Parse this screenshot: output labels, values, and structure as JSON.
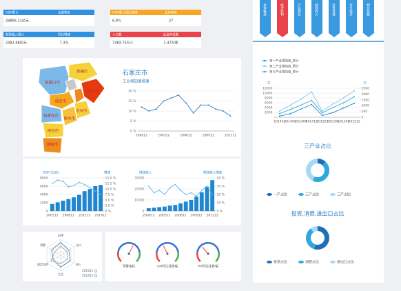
{
  "cards": [
    {
      "title": "GDP累计",
      "title2": "全国排名",
      "value": "29806.11亿元",
      "color": "#2f8fe0"
    },
    {
      "title": "GDP累计同比增速",
      "title2": "全省排名",
      "value": "6.8%",
      "value2": "27",
      "color": "#f5a623"
    },
    {
      "title": "财政收入累计",
      "title2": "同比增速",
      "value": "2382.68亿元",
      "value2": "7.3%",
      "color": "#2f8fe0"
    },
    {
      "title": "人口数",
      "title2": "企业单位数",
      "value": "7383.75万人",
      "value2": "1.47万家",
      "color": "#e8434b"
    }
  ],
  "tabs": {
    "labels": [
      "总体概述",
      "经济结构",
      "产业指标",
      "财政收入",
      "投资消费",
      "对外经济",
      "物价指数"
    ],
    "active": 1
  },
  "map": {
    "regions": [
      "张家口市",
      "承德市",
      "唐山市",
      "保定市",
      "沧州市",
      "石家庄市",
      "衡水市",
      "邢台市",
      "邯郸市"
    ]
  },
  "chart_data": [
    {
      "type": "line",
      "title": "石家庄市",
      "subtitle": "工业增加值增速",
      "color": "#2b7fc4",
      "categories": [
        "200012",
        null,
        null,
        "200312",
        null,
        null,
        "200612",
        null,
        null,
        "200912",
        null,
        null,
        "201212"
      ],
      "values": [
        12,
        10,
        11,
        15,
        16.5,
        18,
        14,
        9,
        13,
        13,
        11,
        10,
        7.5
      ],
      "ylim": [
        0,
        20
      ],
      "yticks": [
        {
          "value": 0,
          "label": "0 %"
        },
        {
          "value": 5,
          "label": "5 %"
        },
        {
          "value": 10,
          "label": "10 %"
        },
        {
          "value": 15,
          "label": "15 %"
        },
        {
          "value": 20,
          "label": "20 %"
        }
      ],
      "grid": true
    },
    {
      "type": "bar",
      "ylabel": "GDP (亿元)",
      "y2label": "增速",
      "categories": [
        "200512",
        null,
        null,
        "200812",
        null,
        null,
        "201112",
        null,
        null,
        "201412"
      ],
      "series": [
        {
          "type": "bar",
          "color": "#1f86d0",
          "values": [
            1700,
            2100,
            2500,
            2900,
            3300,
            3900,
            4800,
            5300,
            6000,
            6300
          ]
        },
        {
          "type": "line",
          "axis": "y2",
          "color": "#5bb4e8",
          "values": [
            12.5,
            14,
            13.5,
            11,
            11.5,
            13,
            12,
            10.5,
            9,
            7.5
          ]
        }
      ],
      "ylim": [
        0,
        8000
      ],
      "yticks": [
        0,
        2000,
        4000,
        6000,
        8000
      ],
      "y2lim": [
        0,
        15
      ],
      "y2ticks": [
        {
          "value": 0,
          "label": "0 %"
        },
        {
          "value": 2.5,
          "label": "2.5 %"
        },
        {
          "value": 5,
          "label": "5.0 %"
        },
        {
          "value": 7.5,
          "label": "7.5 %"
        },
        {
          "value": 10,
          "label": "10.0 %"
        },
        {
          "value": 12.5,
          "label": "12.5 %"
        },
        {
          "value": 15,
          "label": "15.0 %"
        }
      ],
      "grid": true
    },
    {
      "type": "bar",
      "ylabel": "财政收入",
      "y2label": "财政收入增速",
      "categories": [
        "200012",
        null,
        null,
        "200312",
        null,
        null,
        "200612",
        null,
        null,
        "200912",
        null,
        null,
        "201212"
      ],
      "series": [
        {
          "type": "bar",
          "color": "#1f86d0",
          "values": [
            2500,
            3000,
            3500,
            4000,
            5000,
            5500,
            7000,
            8500,
            10000,
            13000,
            17000,
            22000,
            28000
          ]
        },
        {
          "type": "line",
          "axis": "y2",
          "color": "#5bb4e8",
          "values": [
            30,
            22,
            25,
            20,
            28,
            32,
            25,
            20,
            22,
            18,
            25,
            30,
            20
          ]
        }
      ],
      "ylim": [
        0,
        30000
      ],
      "yticks": [
        0,
        10000,
        20000,
        30000
      ],
      "y2lim": [
        0,
        40
      ],
      "y2ticks": [
        {
          "value": 0,
          "label": "0 %"
        },
        {
          "value": 10,
          "label": "10 %"
        },
        {
          "value": 20,
          "label": "20 %"
        },
        {
          "value": 30,
          "label": "30 %"
        },
        {
          "value": 40,
          "label": "40 %"
        }
      ],
      "grid": true
    },
    {
      "type": "line",
      "ylabel": "亿",
      "y2label": "亿",
      "categories": [
        "201403",
        "201406",
        "201409",
        "201412",
        "201503",
        "201506",
        "201509",
        "201512"
      ],
      "series": [
        {
          "name": "第一产业增加值_累计",
          "axis": "y2",
          "color": "#1f86d0",
          "values": [
            100,
            300,
            700,
            1100,
            150,
            400,
            800,
            1200
          ]
        },
        {
          "name": "第二产业增加值_累计",
          "color": "#7fc6ee",
          "values": [
            2500,
            5000,
            7500,
            10500,
            2500,
            5500,
            8000,
            11000
          ]
        },
        {
          "name": "第三产业增加值_累计",
          "color": "#2aa5c9",
          "values": [
            1500,
            3200,
            5000,
            7000,
            1800,
            4000,
            6000,
            8500
          ]
        }
      ],
      "ylim": [
        0,
        12000
      ],
      "yticks": [
        2000,
        4000,
        6000,
        8000,
        10000,
        12000
      ],
      "y2lim": [
        0,
        2500
      ],
      "y2ticks": [
        0,
        500,
        1000,
        1500,
        2000,
        2500
      ],
      "grid": true,
      "legend": "top-left"
    },
    {
      "type": "pie",
      "title": "三产业占比",
      "categories": [
        "一产占比",
        "三产占比",
        "二产占比"
      ],
      "values": [
        12,
        45,
        43
      ],
      "colors": [
        "#1f6fb5",
        "#2fa8dc",
        "#a9d8f0"
      ],
      "legend": "bottom"
    },
    {
      "type": "pie",
      "title": "投资,消费,进出口占比",
      "categories": [
        "投资占比",
        "消费占比",
        "进出口占比"
      ],
      "values": [
        55,
        35,
        10
      ],
      "colors": [
        "#1f6fb5",
        "#2fa8dc",
        "#a9d8f0"
      ],
      "legend": "bottom"
    },
    {
      "type": "radar",
      "categories": [
        "GDP",
        "出口",
        "进入",
        "工业",
        "固定投资",
        "消费"
      ],
      "series": [
        {
          "name": "2011Q2",
          "color": "#2b7fc4",
          "values": [
            80,
            60,
            70,
            75,
            55,
            65
          ]
        },
        {
          "name": "2012Q2",
          "color": "#a0a0a0",
          "values": [
            60,
            45,
            50,
            55,
            70,
            40
          ]
        }
      ],
      "ylim": [
        0,
        100
      ],
      "legend": "bottom-right"
    },
    {
      "type": "gauge",
      "categories": [
        "预警指标",
        "CPI同比涨跌幅",
        "PPI同比涨跌幅"
      ],
      "values": [
        60,
        40,
        35
      ],
      "ylim": [
        0,
        100
      ]
    }
  ]
}
